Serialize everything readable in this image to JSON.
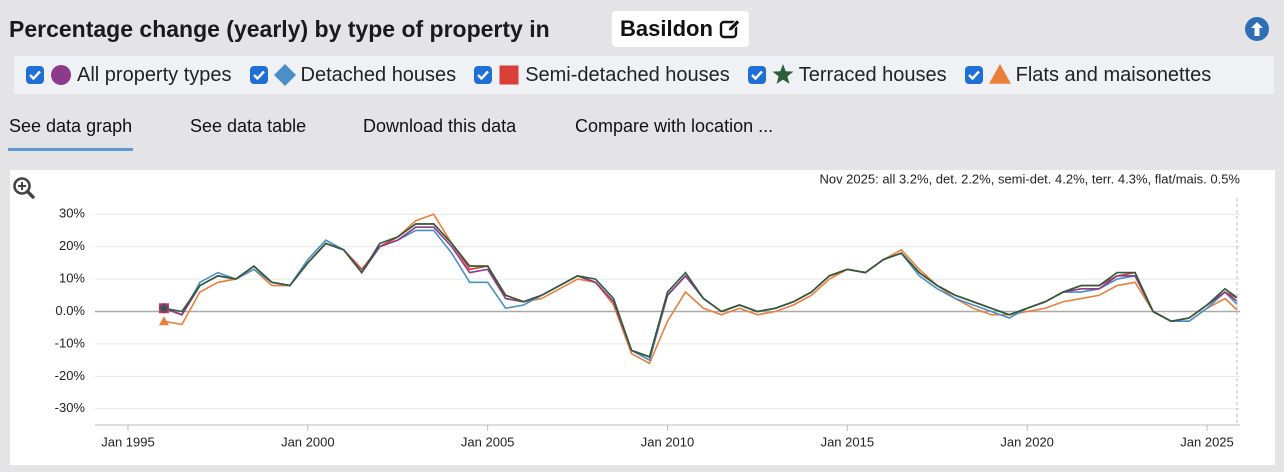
{
  "title": "Percentage change (yearly) by type of property in",
  "location": "Basildon",
  "tabs": [
    "See data graph",
    "See data table",
    "Download this data",
    "Compare with location ..."
  ],
  "chart_data": {
    "type": "line",
    "annotation": "Nov 2025: all 3.2%, det. 2.2%, semi-det. 4.2%, terr. 4.3%, flat/mais. 0.5%",
    "x": [
      "Jan 1996",
      "Jul 1996",
      "Jan 1997",
      "Jul 1997",
      "Jan 1998",
      "Jul 1998",
      "Jan 1999",
      "Jul 1999",
      "Jan 2000",
      "Jul 2000",
      "Jan 2001",
      "Jul 2001",
      "Jan 2002",
      "Jul 2002",
      "Jan 2003",
      "Jul 2003",
      "Jan 2004",
      "Jul 2004",
      "Jan 2005",
      "Jul 2005",
      "Jan 2006",
      "Jul 2006",
      "Jan 2007",
      "Jul 2007",
      "Jan 2008",
      "Jul 2008",
      "Jan 2009",
      "Jul 2009",
      "Jan 2010",
      "Jul 2010",
      "Jan 2011",
      "Jul 2011",
      "Jan 2012",
      "Jul 2012",
      "Jan 2013",
      "Jul 2013",
      "Jan 2014",
      "Jul 2014",
      "Jan 2015",
      "Jul 2015",
      "Jan 2016",
      "Jul 2016",
      "Jan 2017",
      "Jul 2017",
      "Jan 2018",
      "Jul 2018",
      "Jan 2019",
      "Jul 2019",
      "Jan 2020",
      "Jul 2020",
      "Jan 2021",
      "Jul 2021",
      "Jan 2022",
      "Jul 2022",
      "Jan 2023",
      "Jul 2023",
      "Jan 2024",
      "Jul 2024",
      "Jan 2025",
      "Jul 2025",
      "Nov 2025"
    ],
    "series": [
      {
        "name": "Flats and maisonettes",
        "color": "#e8803c",
        "marker": "triangle",
        "values": [
          -3,
          -4,
          6,
          9,
          10,
          13,
          8,
          8,
          15,
          21,
          19,
          12,
          20,
          23,
          28,
          30,
          21,
          14,
          14,
          5,
          3,
          4,
          7,
          10,
          9,
          2,
          -13,
          -16,
          -3,
          6,
          1,
          -1,
          1,
          -1,
          0,
          2,
          5,
          10,
          13,
          12,
          16,
          19,
          13,
          8,
          4,
          1,
          -1,
          -1,
          0,
          1,
          3,
          4,
          5,
          8,
          9,
          0,
          -3,
          -3,
          1,
          4,
          0.5
        ]
      },
      {
        "name": "Detached houses",
        "color": "#4a8fc7",
        "marker": "diamond",
        "values": [
          1,
          -1,
          9,
          12,
          10,
          13,
          9,
          8,
          16,
          22,
          19,
          12,
          20,
          22,
          25,
          25,
          18,
          9,
          9,
          1,
          2,
          5,
          8,
          11,
          9,
          3,
          -12,
          -15,
          5,
          11,
          4,
          0,
          2,
          0,
          1,
          3,
          6,
          11,
          13,
          12,
          16,
          18,
          11,
          7,
          4,
          2,
          0,
          -2,
          1,
          3,
          6,
          6,
          7,
          10,
          11,
          0,
          -3,
          -3,
          1,
          6,
          2.2
        ]
      },
      {
        "name": "Semi-detached houses",
        "color": "#d9403a",
        "marker": "square",
        "values": [
          1,
          -1,
          8,
          11,
          10,
          14,
          9,
          8,
          15,
          21,
          19,
          13,
          20,
          23,
          27,
          27,
          21,
          13,
          14,
          4,
          3,
          5,
          8,
          11,
          9,
          3,
          -12,
          -14,
          5,
          11,
          4,
          0,
          2,
          0,
          1,
          3,
          6,
          11,
          13,
          12,
          16,
          18,
          12,
          8,
          5,
          3,
          1,
          -1,
          1,
          3,
          6,
          8,
          8,
          11,
          12,
          0,
          -3,
          -2,
          2,
          6,
          4.2
        ]
      },
      {
        "name": "All property types",
        "color": "#8e3a8c",
        "marker": "circle",
        "values": [
          1,
          -1,
          8,
          11,
          10,
          14,
          9,
          8,
          15,
          21,
          19,
          12,
          20,
          22,
          26,
          26,
          20,
          12,
          13,
          4,
          3,
          5,
          8,
          11,
          9,
          3,
          -12,
          -14,
          5,
          11,
          4,
          0,
          2,
          0,
          1,
          3,
          6,
          11,
          13,
          12,
          16,
          18,
          12,
          8,
          5,
          3,
          1,
          -1,
          1,
          3,
          6,
          7,
          7,
          11,
          11,
          0,
          -3,
          -2,
          2,
          6,
          3.2
        ]
      },
      {
        "name": "Terraced houses",
        "color": "#2d5e3a",
        "marker": "star",
        "values": [
          1,
          0,
          8,
          11,
          10,
          14,
          9,
          8,
          15,
          21,
          19,
          12,
          21,
          23,
          27,
          27,
          21,
          14,
          14,
          5,
          3,
          5,
          8,
          11,
          10,
          4,
          -12,
          -14,
          6,
          12,
          4,
          0,
          2,
          0,
          1,
          3,
          6,
          11,
          13,
          12,
          16,
          18,
          12,
          8,
          5,
          3,
          1,
          -1,
          1,
          3,
          6,
          8,
          8,
          12,
          12,
          0,
          -3,
          -2,
          2,
          7,
          4.3
        ]
      }
    ],
    "legend_order": [
      3,
      1,
      2,
      4,
      0
    ],
    "xlim": [
      "Feb 1994",
      "Dec 2025"
    ],
    "xticks": [
      "Jan 1995",
      "Jan 2000",
      "Jan 2005",
      "Jan 2010",
      "Jan 2015",
      "Jan 2020",
      "Jan 2025"
    ],
    "ylim": [
      -35,
      35
    ],
    "yticks": [
      {
        "value": -30,
        "label": "-30%"
      },
      {
        "value": -20,
        "label": "-20%"
      },
      {
        "value": -10,
        "label": "-10%"
      },
      {
        "value": 0,
        "label": "0.0%"
      },
      {
        "value": 10,
        "label": "10%"
      },
      {
        "value": 20,
        "label": "20%"
      },
      {
        "value": 30,
        "label": "30%"
      }
    ],
    "grid": true
  }
}
